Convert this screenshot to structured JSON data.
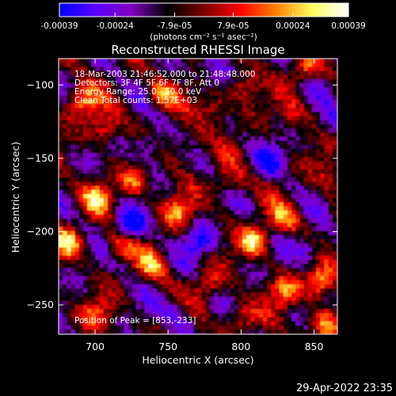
{
  "colorbar": {
    "tick_labels": [
      "-0.00039",
      "-0.00024",
      "-7.9e-05",
      "7.9e-05",
      "0.00024",
      "0.00039"
    ],
    "tick_values": [
      -0.00039,
      -0.00024,
      -7.9e-05,
      7.9e-05,
      0.00024,
      0.00039
    ],
    "range": [
      -0.00039,
      0.00039
    ],
    "unit_label": "(photons cm⁻² s⁻¹ asec⁻²)",
    "colors": [
      "#0000ff",
      "#5a00ff",
      "#8000c0",
      "#000000",
      "#7a0000",
      "#ff0000",
      "#ff8000",
      "#ffff60",
      "#ffffff"
    ]
  },
  "chart_data": {
    "type": "heatmap",
    "title": "Reconstructed RHESSI Image",
    "xlabel": "Heliocentric X (arcsec)",
    "ylabel": "Heliocentric Y (arcsec)",
    "xlim": [
      675,
      866
    ],
    "ylim": [
      -270,
      -82
    ],
    "x_ticks": [
      700,
      750,
      800,
      850
    ],
    "y_ticks": [
      -100,
      -150,
      -200,
      -250
    ],
    "x_tick_labels": [
      "700",
      "750",
      "800",
      "850"
    ],
    "y_tick_labels": [
      "−100",
      "−150",
      "−200",
      "−250"
    ],
    "annotations": [
      "18-Mar-2003 21:46:52.000 to 21:48:48.000",
      "Detectors: 3F 4F 5F 6F 7F 8F, Att 0",
      "Energy Range: 25.0 - 50.0 keV",
      "Clean     Total counts: 1.57E+03"
    ],
    "peak_label": "Position of Peak = [853,-233]",
    "peak": {
      "x": 853,
      "y": -233
    },
    "hotspots": [
      {
        "x": 690,
        "y": -110,
        "v": 0.0003
      },
      {
        "x": 705,
        "y": -128,
        "v": 0.00026
      },
      {
        "x": 745,
        "y": -105,
        "v": 0.00028
      },
      {
        "x": 780,
        "y": -115,
        "v": 0.00022
      },
      {
        "x": 800,
        "y": -100,
        "v": 0.00024
      },
      {
        "x": 843,
        "y": -88,
        "v": 0.00022
      },
      {
        "x": 700,
        "y": -175,
        "v": 0.0003
      },
      {
        "x": 726,
        "y": -165,
        "v": 0.00025
      },
      {
        "x": 755,
        "y": -185,
        "v": 0.00027
      },
      {
        "x": 790,
        "y": -165,
        "v": 0.0002
      },
      {
        "x": 808,
        "y": -205,
        "v": 0.00036
      },
      {
        "x": 828,
        "y": -190,
        "v": 0.00024
      },
      {
        "x": 680,
        "y": -205,
        "v": 0.00032
      },
      {
        "x": 715,
        "y": -208,
        "v": 0.00024
      },
      {
        "x": 738,
        "y": -222,
        "v": 0.00026
      },
      {
        "x": 776,
        "y": -235,
        "v": 0.0002
      },
      {
        "x": 828,
        "y": -240,
        "v": 0.00026
      },
      {
        "x": 853,
        "y": -233,
        "v": 0.00039
      },
      {
        "x": 860,
        "y": -160,
        "v": 0.00018
      },
      {
        "x": 700,
        "y": -255,
        "v": 0.0002
      },
      {
        "x": 798,
        "y": -258,
        "v": 0.00024
      },
      {
        "x": 855,
        "y": -262,
        "v": 0.0003
      },
      {
        "x": 760,
        "y": -140,
        "v": 0.00018
      },
      {
        "x": 833,
        "y": -120,
        "v": 0.00016
      }
    ],
    "coldspots": [
      {
        "x": 722,
        "y": -195,
        "v": -0.0003
      },
      {
        "x": 770,
        "y": -205,
        "v": -0.00026
      },
      {
        "x": 735,
        "y": -140,
        "v": -0.00022
      },
      {
        "x": 845,
        "y": -210,
        "v": -0.00022
      },
      {
        "x": 818,
        "y": -150,
        "v": -0.0002
      },
      {
        "x": 755,
        "y": -255,
        "v": -0.00018
      },
      {
        "x": 780,
        "y": -90,
        "v": -0.00018
      },
      {
        "x": 860,
        "y": -125,
        "v": -0.00016
      }
    ]
  },
  "footer_timestamp": "29-Apr-2022 23:35"
}
